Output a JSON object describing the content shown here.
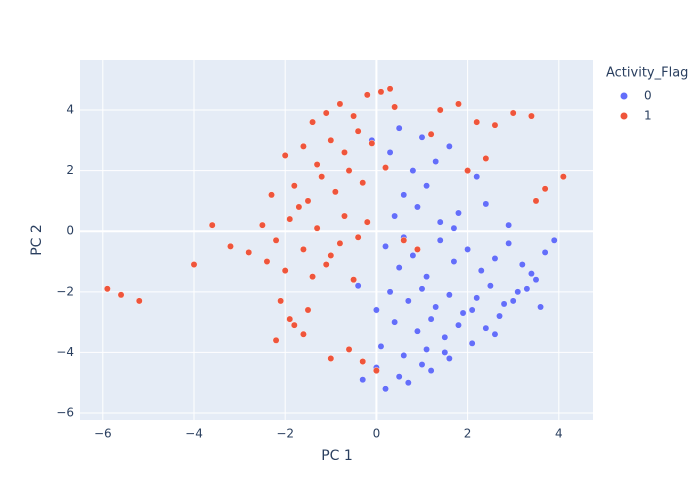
{
  "chart_data": {
    "type": "scatter",
    "x_label": "PC 1",
    "y_label": "PC 2",
    "legend_title": "Activity_Flag",
    "legend": "top-right-outside",
    "grid": true,
    "xlim": [
      -6.5,
      4.75
    ],
    "ylim": [
      -6.23,
      5.65
    ],
    "xticks": [
      {
        "value": -6,
        "label": "−6"
      },
      {
        "value": -4,
        "label": "−4"
      },
      {
        "value": -2,
        "label": "−2"
      },
      0,
      2,
      4
    ],
    "yticks": [
      {
        "value": -6,
        "label": "−6"
      },
      {
        "value": -4,
        "label": "−4"
      },
      {
        "value": -2,
        "label": "−2"
      },
      0,
      2,
      4
    ],
    "series": [
      {
        "name": "0",
        "color": "#636efa",
        "x": [
          0.2,
          0.5,
          0.8,
          1.1,
          1.4,
          1.7,
          2.0,
          2.3,
          2.6,
          2.9,
          3.2,
          3.5,
          3.7,
          0.3,
          0.7,
          1.0,
          1.3,
          1.6,
          1.9,
          2.2,
          2.5,
          2.8,
          3.1,
          3.4,
          0.4,
          0.9,
          1.2,
          1.5,
          1.8,
          2.1,
          2.4,
          2.7,
          3.0,
          3.3,
          3.6,
          0.1,
          0.6,
          1.1,
          1.6,
          2.1,
          2.6,
          0.0,
          0.5,
          1.0,
          1.5,
          -0.3,
          0.2,
          0.7,
          1.2,
          0.4,
          0.9,
          1.4,
          0.6,
          1.1,
          1.8,
          2.4,
          0.8,
          1.3,
          0.3,
          -0.1,
          0.5,
          1.0,
          1.6,
          2.2,
          -0.4,
          0.0,
          3.9,
          2.9,
          1.7,
          0.6
        ],
        "values": [
          -0.5,
          -1.2,
          -0.8,
          -1.5,
          -0.3,
          -1.0,
          -0.6,
          -1.3,
          -0.9,
          -0.4,
          -1.1,
          -1.6,
          -0.7,
          -2.0,
          -2.3,
          -1.9,
          -2.5,
          -2.1,
          -2.7,
          -2.2,
          -1.8,
          -2.4,
          -2.0,
          -1.4,
          -3.0,
          -3.3,
          -2.9,
          -3.5,
          -3.1,
          -2.6,
          -3.2,
          -2.8,
          -2.3,
          -1.9,
          -2.5,
          -3.8,
          -4.1,
          -3.9,
          -4.2,
          -3.7,
          -3.4,
          -4.5,
          -4.8,
          -4.4,
          -4.0,
          -4.9,
          -5.2,
          -5.0,
          -4.6,
          0.5,
          0.8,
          0.3,
          1.2,
          1.5,
          0.6,
          0.9,
          2.0,
          2.3,
          2.6,
          3.0,
          3.4,
          3.1,
          2.8,
          1.8,
          -1.8,
          -2.6,
          -0.3,
          0.2,
          0.1,
          -0.2
        ]
      },
      {
        "name": "1",
        "color": "#EF553B",
        "x": [
          -2.5,
          -2.2,
          -1.9,
          -1.6,
          -1.3,
          -1.0,
          -0.7,
          -0.4,
          -2.8,
          -2.4,
          -2.0,
          -1.7,
          -1.4,
          -1.1,
          -0.8,
          -0.5,
          -2.3,
          -1.8,
          -1.5,
          -1.2,
          -0.9,
          -0.6,
          -0.3,
          -2.0,
          -1.6,
          -1.3,
          -1.0,
          -0.7,
          -0.4,
          -0.1,
          0.2,
          -1.4,
          -1.1,
          -0.8,
          -0.5,
          -0.2,
          0.1,
          0.4,
          -2.1,
          -1.9,
          -1.6,
          -2.2,
          -1.8,
          -1.5,
          -0.6,
          -0.3,
          0.0,
          1.4,
          1.8,
          2.2,
          2.6,
          3.0,
          3.4,
          3.7,
          1.2,
          2.4,
          3.5,
          -5.9,
          -5.6,
          -5.2,
          -3.6,
          -4.0,
          -3.2,
          0.6,
          0.9,
          -0.2,
          0.3,
          2.0,
          4.1,
          -1.0
        ],
        "values": [
          0.2,
          -0.3,
          0.4,
          -0.6,
          0.1,
          -0.8,
          0.5,
          -0.2,
          -0.7,
          -1.0,
          -1.3,
          0.8,
          -1.5,
          -1.1,
          -0.4,
          -1.6,
          1.2,
          1.5,
          1.0,
          1.8,
          1.3,
          2.0,
          1.6,
          2.5,
          2.8,
          2.2,
          3.0,
          2.6,
          3.3,
          2.9,
          2.1,
          3.6,
          3.9,
          4.2,
          3.8,
          4.5,
          4.6,
          4.1,
          -2.3,
          -2.9,
          -3.4,
          -3.6,
          -3.1,
          -2.6,
          -3.9,
          -4.3,
          -4.6,
          4.0,
          4.2,
          3.6,
          3.5,
          3.9,
          3.8,
          1.4,
          3.2,
          2.4,
          1.0,
          -1.9,
          -2.1,
          -2.3,
          0.2,
          -1.1,
          -0.5,
          -0.3,
          -0.6,
          0.3,
          4.7,
          2.0,
          1.8,
          -4.2
        ]
      }
    ]
  }
}
